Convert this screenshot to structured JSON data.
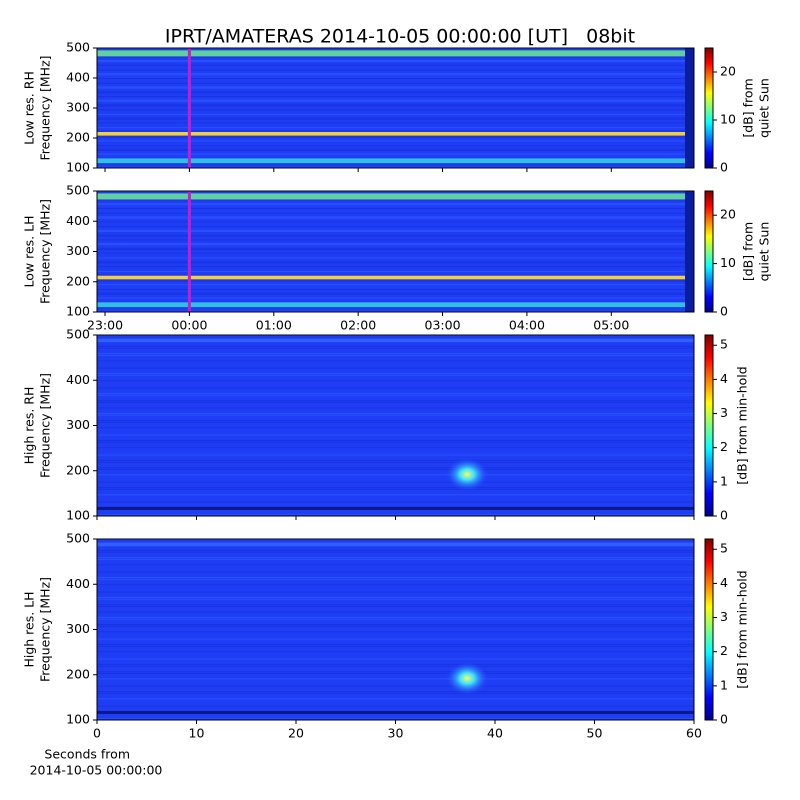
{
  "title": "IPRT/AMATERAS 2014-10-05 00:00:00 [UT]   08bit",
  "footer": [
    "Seconds from",
    "2014-10-05 00:00:00"
  ],
  "chart_data": [
    {
      "type": "spectrogram",
      "ylabel": [
        "Low res. RH",
        "Frequency [MHz]"
      ],
      "ylim": [
        100,
        500
      ],
      "yticks": [
        100,
        200,
        300,
        400,
        500
      ],
      "xlim": [
        -1.095,
        5.98
      ],
      "xticks": [
        -1,
        0,
        1,
        2,
        3,
        4,
        5
      ],
      "xtick_labels": false,
      "marker_x": 0,
      "marker_color": "#c81ec8",
      "colormap": "jet",
      "clim": [
        0,
        25
      ],
      "cticks": [
        0,
        10,
        20
      ],
      "clabel": [
        "[dB] from",
        "quiet Sun"
      ]
    },
    {
      "type": "spectrogram",
      "ylabel": [
        "Low res. LH",
        "Frequency [MHz]"
      ],
      "ylim": [
        100,
        500
      ],
      "yticks": [
        100,
        200,
        300,
        400,
        500
      ],
      "xlim": [
        -1.095,
        5.98
      ],
      "xticks": [
        {
          "value": -1,
          "label": "23:00"
        },
        {
          "value": 0,
          "label": "00:00"
        },
        {
          "value": 1,
          "label": "01:00"
        },
        {
          "value": 2,
          "label": "02:00"
        },
        {
          "value": 3,
          "label": "03:00"
        },
        {
          "value": 4,
          "label": "04:00"
        },
        {
          "value": 5,
          "label": "05:00"
        }
      ],
      "xtick_labels": true,
      "marker_x": 0,
      "marker_color": "#c81ec8",
      "colormap": "jet",
      "clim": [
        0,
        25
      ],
      "cticks": [
        0,
        10,
        20
      ],
      "clabel": [
        "[dB] from",
        "quiet Sun"
      ]
    },
    {
      "type": "spectrogram",
      "ylabel": [
        "High res. RH",
        "Frequency [MHz]"
      ],
      "ylim": [
        100,
        500
      ],
      "yticks": [
        100,
        200,
        300,
        400,
        500
      ],
      "xlim": [
        0,
        60
      ],
      "xticks": [
        0,
        10,
        20,
        30,
        40,
        50,
        60
      ],
      "xtick_labels": false,
      "colormap": "jet",
      "clim": [
        0,
        5.3
      ],
      "cticks": [
        0,
        1,
        2,
        3,
        4,
        5
      ],
      "clabel": [
        "[dB] from min-hold"
      ]
    },
    {
      "type": "spectrogram",
      "ylabel": [
        "High res. LH",
        "Frequency [MHz]"
      ],
      "ylim": [
        100,
        500
      ],
      "yticks": [
        100,
        200,
        300,
        400,
        500
      ],
      "xlim": [
        0,
        60
      ],
      "xticks": [
        0,
        10,
        20,
        30,
        40,
        50,
        60
      ],
      "xtick_labels": true,
      "colormap": "jet",
      "clim": [
        0,
        5.3
      ],
      "cticks": [
        0,
        1,
        2,
        3,
        4,
        5
      ],
      "clabel": [
        "[dB] from min-hold"
      ]
    }
  ]
}
